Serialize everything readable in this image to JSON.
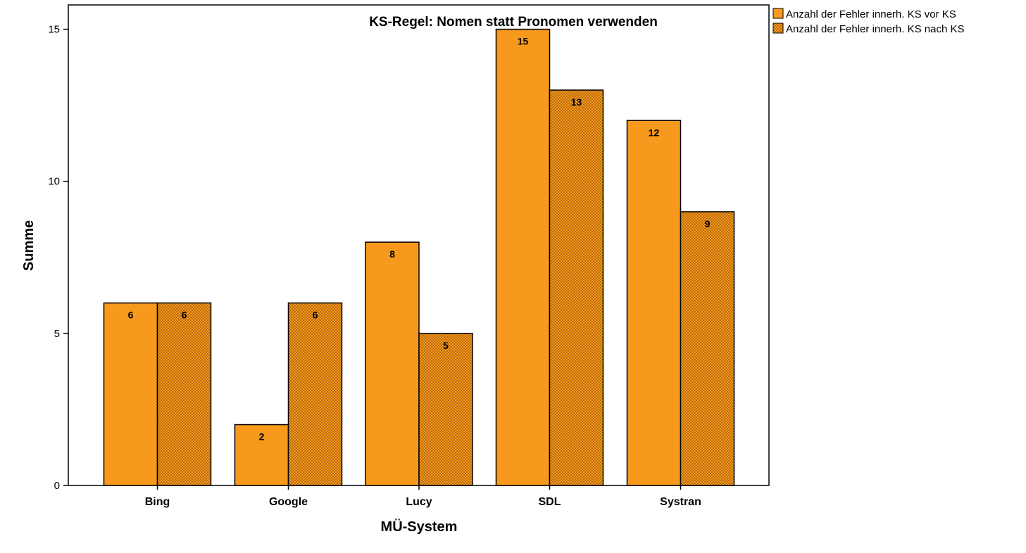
{
  "chart_data": {
    "type": "bar",
    "title": "KS-Regel: Nomen statt Pronomen verwenden",
    "xlabel": "MÜ-System",
    "ylabel": "Summe",
    "categories": [
      "Bing",
      "Google",
      "Lucy",
      "SDL",
      "Systran"
    ],
    "series": [
      {
        "name": "Anzahl der Fehler innerh. KS vor KS",
        "values": [
          6,
          2,
          8,
          15,
          12
        ],
        "color": "#F7991C",
        "pattern": "solid"
      },
      {
        "name": "Anzahl der Fehler innerh. KS nach KS",
        "values": [
          6,
          6,
          5,
          13,
          9
        ],
        "color": "#F7991C",
        "pattern": "crosshatch"
      }
    ],
    "ylim": [
      0,
      15.8
    ],
    "yticks": [
      0,
      5,
      10,
      15
    ],
    "grid": false,
    "legend_position": "top-right-outside",
    "data_labels": true
  }
}
